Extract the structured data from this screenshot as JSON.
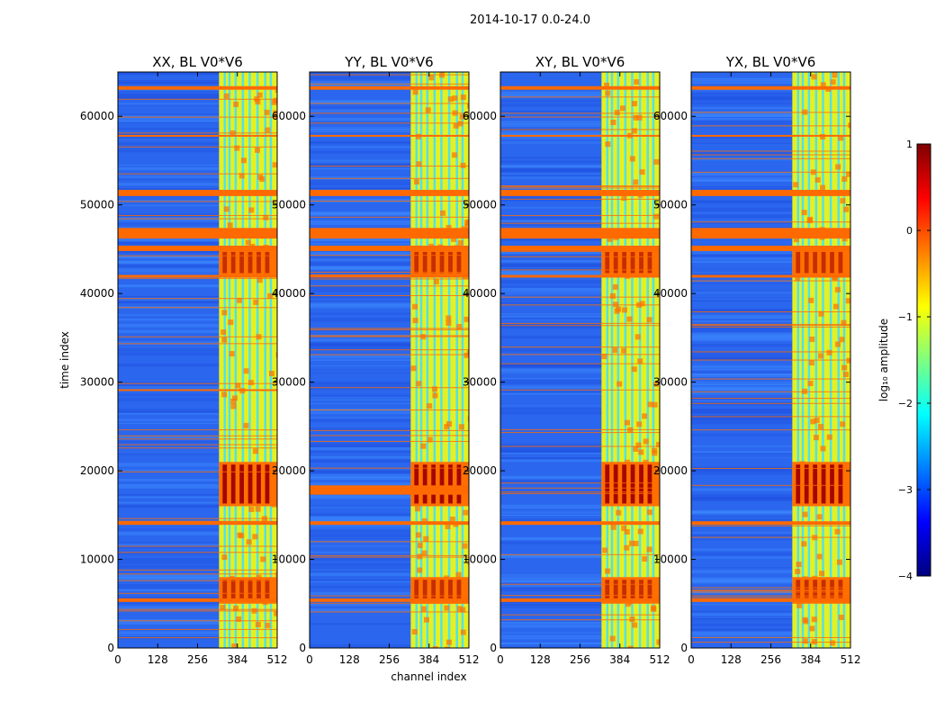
{
  "figure": {
    "suptitle": "2014-10-17 0.0-24.0",
    "colorbar": {
      "label": "log₁₀ amplitude",
      "range": [
        -4,
        1
      ],
      "ticks": [
        1,
        0,
        -1,
        -2,
        -3,
        -4
      ],
      "tick_labels": [
        "1",
        "0",
        "−1",
        "−2",
        "−3",
        "−4"
      ],
      "colormap": [
        "#00007f",
        "#0000ff",
        "#007fff",
        "#00ffff",
        "#7fff7f",
        "#ffff00",
        "#ff7f00",
        "#ff0000",
        "#7f0000"
      ]
    },
    "colors": {
      "background_blue": "#2a66ee",
      "band_yellow": "#e6f020",
      "band_orange": "#ff7000",
      "band_red": "#a00000",
      "band_cyan": "#40e0ff",
      "flag_orange": "#ff6a00"
    }
  },
  "chart_data": [
    {
      "type": "heatmap",
      "title": "XX, BL V0*V6",
      "xlabel": "",
      "ylabel": "time index",
      "xlim": [
        0,
        512
      ],
      "ylim": [
        0,
        65000
      ],
      "xticks": [
        0,
        128,
        256,
        384,
        512
      ],
      "xtick_labels": [
        "0",
        "128",
        "256",
        "384",
        "512"
      ],
      "yticks": [
        0,
        10000,
        20000,
        30000,
        40000,
        50000,
        60000
      ],
      "ytick_labels": [
        "0",
        "10000",
        "20000",
        "30000",
        "40000",
        "50000",
        "60000"
      ],
      "active_channels": [
        325,
        512
      ],
      "burst_time_ranges": [
        [
          16000,
          21000
        ],
        [
          42000,
          45000
        ],
        [
          5000,
          8000
        ]
      ],
      "flagged_time_ranges": [
        [
          46200,
          47400
        ],
        [
          44800,
          45400
        ],
        [
          41800,
          42100
        ],
        [
          51000,
          51700
        ],
        [
          13900,
          14300
        ],
        [
          5200,
          5600
        ],
        [
          57700,
          57900
        ],
        [
          63000,
          63400
        ],
        [
          29000,
          29200
        ]
      ]
    },
    {
      "type": "heatmap",
      "title": "YY, BL V0*V6",
      "xlabel": "channel index",
      "ylabel": "",
      "xlim": [
        0,
        512
      ],
      "ylim": [
        0,
        65000
      ],
      "xticks": [
        0,
        128,
        256,
        384,
        512
      ],
      "xtick_labels": [
        "0",
        "128",
        "256",
        "384",
        "512"
      ],
      "yticks": [
        0,
        10000,
        20000,
        30000,
        40000,
        50000,
        60000
      ],
      "ytick_labels": [
        "0",
        "10000",
        "20000",
        "30000",
        "40000",
        "50000",
        "60000"
      ],
      "active_channels": [
        325,
        512
      ],
      "burst_time_ranges": [
        [
          16000,
          21000
        ],
        [
          42000,
          45000
        ],
        [
          5000,
          8000
        ]
      ],
      "flagged_time_ranges": [
        [
          46200,
          47400
        ],
        [
          44800,
          45400
        ],
        [
          41800,
          42100
        ],
        [
          51000,
          51700
        ],
        [
          13900,
          14300
        ],
        [
          5200,
          5600
        ],
        [
          57700,
          57900
        ],
        [
          63000,
          63400
        ],
        [
          17300,
          18300
        ]
      ]
    },
    {
      "type": "heatmap",
      "title": "XY, BL V0*V6",
      "xlabel": "",
      "ylabel": "",
      "xlim": [
        0,
        512
      ],
      "ylim": [
        0,
        65000
      ],
      "xticks": [
        0,
        128,
        256,
        384,
        512
      ],
      "xtick_labels": [
        "0",
        "128",
        "256",
        "384",
        "512"
      ],
      "yticks": [
        0,
        10000,
        20000,
        30000,
        40000,
        50000,
        60000
      ],
      "ytick_labels": [
        "0",
        "10000",
        "20000",
        "30000",
        "40000",
        "50000",
        "60000"
      ],
      "active_channels": [
        325,
        512
      ],
      "burst_time_ranges": [
        [
          16000,
          21000
        ],
        [
          42000,
          45000
        ],
        [
          5000,
          8000
        ]
      ],
      "flagged_time_ranges": [
        [
          46200,
          47400
        ],
        [
          44800,
          45400
        ],
        [
          41800,
          42100
        ],
        [
          51000,
          51700
        ],
        [
          13900,
          14300
        ],
        [
          5200,
          5600
        ],
        [
          57700,
          57900
        ],
        [
          63000,
          63400
        ]
      ]
    },
    {
      "type": "heatmap",
      "title": "YX, BL V0*V6",
      "xlabel": "",
      "ylabel": "",
      "xlim": [
        0,
        512
      ],
      "ylim": [
        0,
        65000
      ],
      "xticks": [
        0,
        128,
        256,
        384,
        512
      ],
      "xtick_labels": [
        "0",
        "128",
        "256",
        "384",
        "512"
      ],
      "yticks": [
        0,
        10000,
        20000,
        30000,
        40000,
        50000,
        60000
      ],
      "ytick_labels": [
        "0",
        "10000",
        "20000",
        "30000",
        "40000",
        "50000",
        "60000"
      ],
      "active_channels": [
        325,
        512
      ],
      "burst_time_ranges": [
        [
          16000,
          21000
        ],
        [
          42000,
          45000
        ],
        [
          5000,
          8000
        ]
      ],
      "flagged_time_ranges": [
        [
          46200,
          47400
        ],
        [
          44800,
          45400
        ],
        [
          41800,
          42100
        ],
        [
          51000,
          51700
        ],
        [
          13900,
          14300
        ],
        [
          5200,
          5600
        ],
        [
          57700,
          57900
        ],
        [
          63000,
          63400
        ]
      ]
    }
  ]
}
